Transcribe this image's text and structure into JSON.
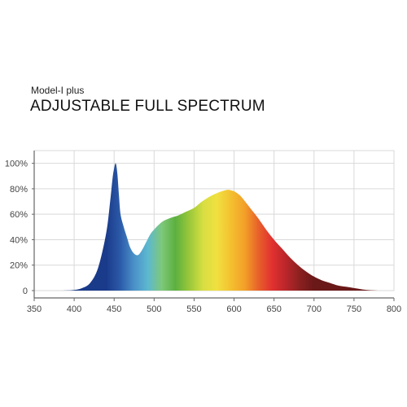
{
  "header": {
    "subtitle": "Model-I plus",
    "title": "ADJUSTABLE FULL SPECTRUM"
  },
  "chart_data": {
    "type": "area",
    "title": "ADJUSTABLE FULL SPECTRUM",
    "subtitle": "Model-I plus",
    "xlabel": "",
    "ylabel": "",
    "xlim": [
      350,
      800
    ],
    "ylim": [
      0,
      110
    ],
    "x_ticks": [
      350,
      400,
      450,
      500,
      550,
      600,
      650,
      700,
      750,
      800
    ],
    "y_ticks": [
      0,
      20,
      40,
      60,
      80,
      100
    ],
    "y_tick_labels": [
      "0",
      "20%",
      "40%",
      "60%",
      "80%",
      "100%"
    ],
    "grid": true,
    "legend": "none",
    "series": [
      {
        "x": [
          385,
          400,
          410,
          420,
          430,
          440,
          445,
          448,
          450,
          452,
          454,
          456,
          458,
          462,
          466,
          470,
          475,
          480,
          485,
          490,
          495,
          500,
          510,
          520,
          530,
          540,
          550,
          560,
          570,
          580,
          590,
          595,
          600,
          605,
          610,
          620,
          630,
          640,
          650,
          660,
          670,
          680,
          690,
          700,
          710,
          720,
          730,
          740,
          750,
          760,
          770,
          780
        ],
        "values": [
          0,
          0.5,
          2,
          6,
          18,
          45,
          70,
          88,
          96,
          100,
          92,
          75,
          60,
          50,
          42,
          34,
          29,
          28,
          32,
          38,
          44,
          48,
          54,
          57,
          59,
          62,
          65,
          70,
          74,
          77,
          79,
          79,
          78,
          76,
          73,
          65,
          57,
          48,
          40,
          33,
          26,
          20,
          15,
          11,
          8,
          6,
          4,
          3,
          2,
          1,
          0.3,
          0
        ]
      }
    ],
    "gradient_colors": [
      "#1a3a8a",
      "#2b5aa8",
      "#4a90c8",
      "#5cb8d0",
      "#7ec87a",
      "#5cb040",
      "#9ac83a",
      "#d8de42",
      "#f0e040",
      "#f4c030",
      "#f2a028",
      "#e8602a",
      "#e03030",
      "#b8262a",
      "#8a2020",
      "#6a1818"
    ]
  }
}
